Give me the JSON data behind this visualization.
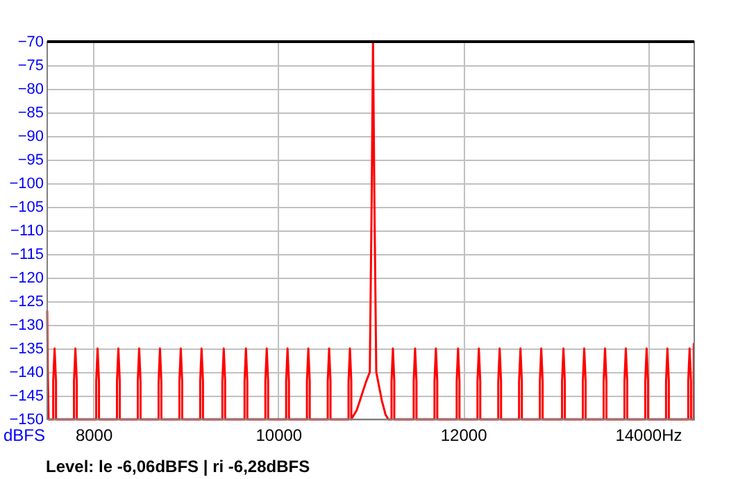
{
  "chart_data": {
    "type": "line",
    "ylabel": "dBFS",
    "annotations": [
      "Level: le -6,06dBFS | ri -6,28dBFS"
    ],
    "xlim": [
      7500,
      14500
    ],
    "ylim": [
      -150,
      -70
    ],
    "xticks": [
      8000,
      10000,
      12000,
      {
        "value": 14000,
        "label": "14000Hz"
      }
    ],
    "yticks": [
      -70,
      -75,
      -80,
      -85,
      -90,
      -95,
      -100,
      -105,
      -110,
      -115,
      -120,
      -125,
      -130,
      -135,
      -140,
      -145,
      -150
    ],
    "grid": true,
    "line_style": "solid",
    "marker": "none",
    "series": [
      {
        "color": "#ff0000",
        "x": [
          7500,
          7505,
          7515,
          7565,
          7565,
          7580,
          7595,
          7595,
          7790,
          7790,
          7805,
          7820,
          7820,
          8030,
          8030,
          8045,
          8060,
          8060,
          8255,
          8255,
          8270,
          8285,
          8285,
          8480,
          8480,
          8495,
          8510,
          8510,
          8705,
          8705,
          8720,
          8735,
          8735,
          8930,
          8930,
          8945,
          8960,
          8960,
          9155,
          9155,
          9170,
          9185,
          9185,
          9395,
          9395,
          9410,
          9425,
          9425,
          9635,
          9635,
          9650,
          9665,
          9665,
          9860,
          9860,
          9875,
          9890,
          9890,
          10085,
          10085,
          10100,
          10115,
          10115,
          10310,
          10310,
          10325,
          10340,
          10340,
          10535,
          10535,
          10550,
          10565,
          10565,
          10760,
          10760,
          10775,
          10790,
          10790,
          10850,
          10900,
          10950,
          10990,
          11010,
          11025,
          11040,
          11060,
          11090,
          11120,
          11160,
          11190,
          11225,
          11225,
          11240,
          11255,
          11255,
          11465,
          11465,
          11480,
          11495,
          11495,
          11690,
          11690,
          11705,
          11720,
          11720,
          11930,
          11930,
          11945,
          11960,
          11960,
          12155,
          12155,
          12170,
          12185,
          12185,
          12380,
          12380,
          12395,
          12410,
          12410,
          12605,
          12605,
          12620,
          12635,
          12635,
          12830,
          12830,
          12845,
          12860,
          12860,
          13070,
          13070,
          13085,
          13100,
          13100,
          13295,
          13295,
          13310,
          13325,
          13325,
          13520,
          13520,
          13535,
          13550,
          13550,
          13745,
          13745,
          13760,
          13775,
          13775,
          13970,
          13970,
          13985,
          14000,
          14000,
          14195,
          14195,
          14210,
          14225,
          14225,
          14435,
          14435,
          14450,
          14465,
          14465,
          14495,
          14495,
          14500
        ],
        "values": [
          -127,
          -139,
          -150,
          -150,
          -142,
          -135,
          -142,
          -150,
          -150,
          -142,
          -135,
          -142,
          -150,
          -150,
          -142,
          -135,
          -142,
          -150,
          -150,
          -142,
          -135,
          -142,
          -150,
          -150,
          -142,
          -135,
          -142,
          -150,
          -150,
          -142,
          -135,
          -142,
          -150,
          -150,
          -142,
          -135,
          -142,
          -150,
          -150,
          -142,
          -135,
          -142,
          -150,
          -150,
          -142,
          -135,
          -142,
          -150,
          -150,
          -142,
          -135,
          -142,
          -150,
          -150,
          -142,
          -135,
          -142,
          -150,
          -150,
          -142,
          -135,
          -142,
          -150,
          -150,
          -142,
          -135,
          -142,
          -150,
          -150,
          -142,
          -135,
          -142,
          -150,
          -150,
          -142,
          -135,
          -142,
          -150,
          -148,
          -145,
          -142,
          -140,
          -104,
          -70,
          -104,
          -140,
          -143,
          -146,
          -149,
          -150,
          -150,
          -142,
          -135,
          -142,
          -150,
          -150,
          -142,
          -135,
          -142,
          -150,
          -150,
          -142,
          -135,
          -142,
          -150,
          -150,
          -142,
          -135,
          -142,
          -150,
          -150,
          -142,
          -135,
          -142,
          -150,
          -150,
          -142,
          -135,
          -142,
          -150,
          -150,
          -142,
          -135,
          -142,
          -150,
          -150,
          -142,
          -135,
          -142,
          -150,
          -150,
          -142,
          -135,
          -142,
          -150,
          -150,
          -142,
          -135,
          -142,
          -150,
          -150,
          -142,
          -135,
          -142,
          -150,
          -150,
          -142,
          -135,
          -142,
          -150,
          -150,
          -142,
          -135,
          -142,
          -150,
          -150,
          -142,
          -135,
          -142,
          -150,
          -150,
          -142,
          -135,
          -142,
          -150,
          -150,
          -134,
          -134
        ]
      }
    ]
  }
}
